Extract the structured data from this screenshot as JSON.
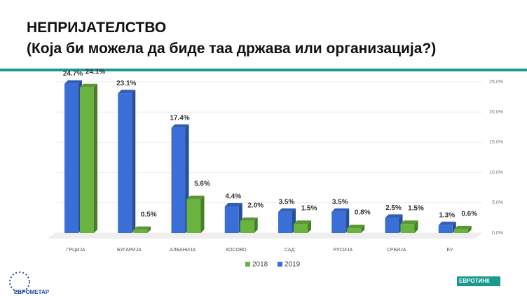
{
  "chart_data": {
    "type": "bar3d",
    "title": "НЕПРИЈАТЕЛСТВО",
    "subtitle": "(Која би можела да биде таа држава или организација?)",
    "categories": [
      "ГРЦИЈА",
      "БУГАРИЈА",
      "АЛБАНИЈА",
      "КОСОВО",
      "САД",
      "РУСИЈА",
      "СРБИЈА",
      "ЕУ"
    ],
    "series": [
      {
        "name": "2018",
        "color": "#6ab33e",
        "values": [
          24.1,
          0.5,
          5.6,
          2.0,
          1.5,
          0.8,
          1.5,
          0.6
        ],
        "value_labels": [
          "24.1%",
          "0.5%",
          "5.6%",
          "2.0%",
          "1.5%",
          "0.8%",
          "1.5%",
          "0.6%"
        ]
      },
      {
        "name": "2019",
        "color": "#3a6fd8",
        "values": [
          24.7,
          23.1,
          17.4,
          4.4,
          3.5,
          3.5,
          2.5,
          1.3
        ],
        "value_labels": [
          "24.7%",
          "23.1%",
          "17.4%",
          "4.4%",
          "3.5%",
          "3.5%",
          "2.5%",
          "1.3%"
        ]
      }
    ],
    "ylim": [
      0,
      25
    ],
    "yticks": [
      {
        "value": 0,
        "label": "0.0%"
      },
      {
        "value": 5,
        "label": "5.0%"
      },
      {
        "value": 10,
        "label": "10.0%"
      },
      {
        "value": 15,
        "label": "15.0%"
      },
      {
        "value": 20,
        "label": "20.0%"
      },
      {
        "value": 25,
        "label": "25.0%"
      }
    ],
    "legend": "bottom"
  },
  "footer": {
    "left_logo": "ЕВРОМЕТАР",
    "right_logo": "ЕВРОТИНК"
  }
}
